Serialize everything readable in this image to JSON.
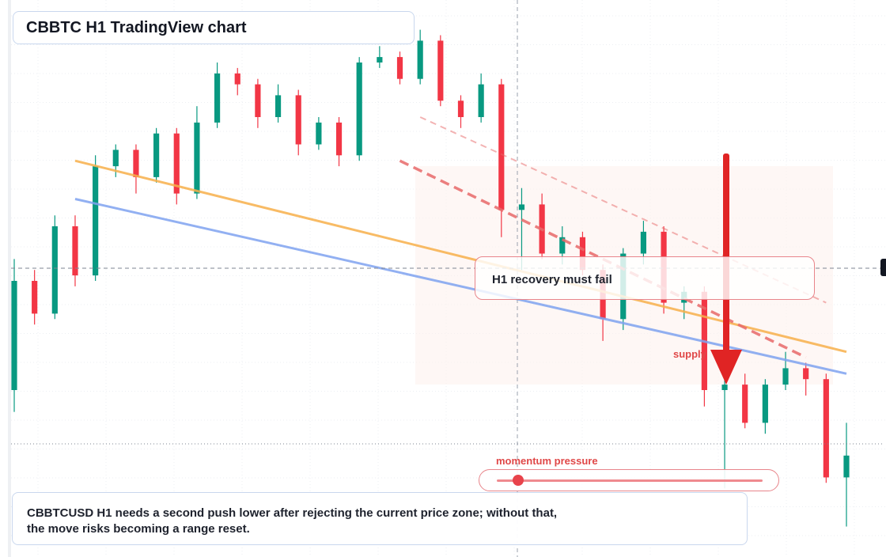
{
  "title": "CBBTC H1 TradingView chart",
  "callout": "H1 recovery must fail",
  "supply_label": "supply",
  "momentum": {
    "label": "momentum pressure",
    "level": 0.08
  },
  "note": {
    "line1": "CBBTCUSD H1 needs a second push lower after rejecting the current price zone; without that,",
    "line2": "the move risks becoming a range reset."
  },
  "colors": {
    "up": "#089981",
    "down": "#f23645",
    "orange_line": "#f7b04b",
    "blue_line": "#7fa3f0",
    "arrow": "#e02424",
    "dash": "#e86a6a"
  },
  "chart_data": {
    "type": "candlestick",
    "symbol": "CBBTCUSD",
    "timeframe": "H1",
    "title": "CBBTC H1 TradingView chart",
    "price_range": [
      0,
      100
    ],
    "candles": [
      [
        30,
        50,
        26,
        54
      ],
      [
        50,
        44,
        42,
        52
      ],
      [
        44,
        60,
        43,
        62
      ],
      [
        60,
        51,
        49,
        62
      ],
      [
        51,
        71,
        50,
        73
      ],
      [
        71,
        74,
        69,
        75
      ],
      [
        74,
        69,
        66,
        75
      ],
      [
        69,
        77,
        68,
        78
      ],
      [
        77,
        66,
        64,
        78
      ],
      [
        66,
        79,
        65,
        82
      ],
      [
        79,
        88,
        78,
        90
      ],
      [
        88,
        86,
        84,
        89
      ],
      [
        86,
        80,
        78,
        87
      ],
      [
        80,
        84,
        79,
        86
      ],
      [
        84,
        75,
        73,
        85
      ],
      [
        75,
        79,
        74,
        80
      ],
      [
        79,
        73,
        71,
        80
      ],
      [
        73,
        90,
        72,
        91
      ],
      [
        90,
        91,
        89,
        93
      ],
      [
        91,
        87,
        86,
        92
      ],
      [
        87,
        94,
        86,
        96
      ],
      [
        94,
        83,
        82,
        95
      ],
      [
        83,
        80,
        78,
        84
      ],
      [
        80,
        86,
        79,
        88
      ],
      [
        86,
        63,
        58,
        87
      ],
      [
        63,
        64,
        52,
        67
      ],
      [
        64,
        55,
        54,
        66
      ],
      [
        55,
        58,
        53,
        60
      ],
      [
        58,
        52,
        51,
        59
      ],
      [
        52,
        43,
        39,
        53
      ],
      [
        43,
        55,
        41,
        56
      ],
      [
        55,
        59,
        53,
        61
      ],
      [
        59,
        46,
        44,
        60
      ],
      [
        46,
        48,
        43,
        49
      ],
      [
        48,
        30,
        27,
        49
      ],
      [
        30,
        31,
        12,
        33
      ],
      [
        31,
        24,
        23,
        33
      ],
      [
        24,
        31,
        22,
        32
      ],
      [
        31,
        34,
        30,
        37
      ],
      [
        34,
        32,
        29,
        35
      ],
      [
        32,
        14,
        13,
        33
      ],
      [
        14,
        18,
        5,
        24
      ]
    ],
    "trendlines": [
      {
        "name": "orange",
        "from": [
          3,
          72
        ],
        "to": [
          41,
          37
        ],
        "style": "solid"
      },
      {
        "name": "blue",
        "from": [
          3,
          65
        ],
        "to": [
          41,
          33
        ],
        "style": "solid"
      },
      {
        "name": "dashed-1",
        "from": [
          19,
          72
        ],
        "to": [
          39,
          36
        ],
        "style": "dashed"
      },
      {
        "name": "dashed-2",
        "from": [
          20,
          80
        ],
        "to": [
          40,
          46
        ],
        "style": "dashed"
      }
    ],
    "grid": true,
    "crosshair": true
  }
}
